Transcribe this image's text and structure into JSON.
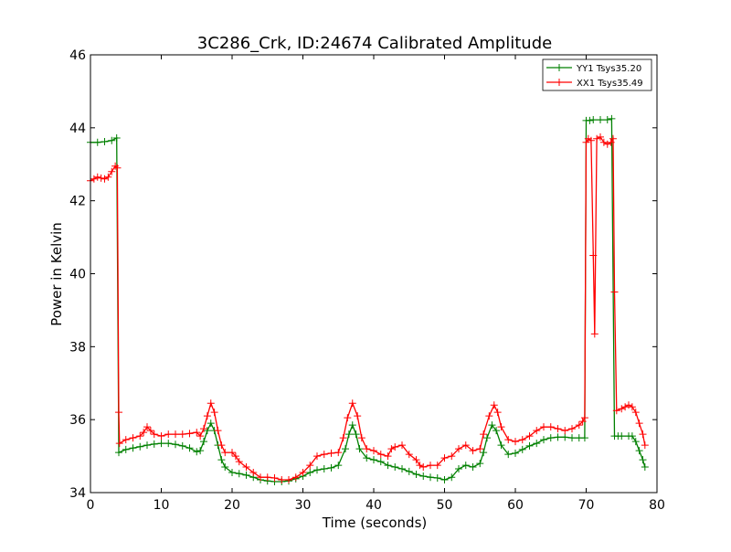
{
  "chart_data": {
    "type": "line",
    "title": "3C286_Crk, ID:24674 Calibrated Amplitude",
    "xlabel": "Time (seconds)",
    "ylabel": "Power in Kelvin",
    "xlim": [
      0,
      80
    ],
    "ylim": [
      34,
      46
    ],
    "xticks": [
      0,
      10,
      20,
      30,
      40,
      50,
      60,
      70,
      80
    ],
    "yticks": [
      34,
      36,
      38,
      40,
      42,
      44,
      46
    ],
    "grid": false,
    "legend_position": "upper-right",
    "marker": "+",
    "series": [
      {
        "name": "YY1 Tsys35.20",
        "color": "#008000",
        "points": [
          [
            0,
            43.6
          ],
          [
            1,
            43.6
          ],
          [
            2,
            43.62
          ],
          [
            3,
            43.65
          ],
          [
            3.7,
            43.72
          ],
          [
            4.0,
            35.1
          ],
          [
            5,
            35.18
          ],
          [
            6,
            35.22
          ],
          [
            7,
            35.26
          ],
          [
            8,
            35.3
          ],
          [
            9,
            35.33
          ],
          [
            10,
            35.35
          ],
          [
            11,
            35.35
          ],
          [
            12,
            35.32
          ],
          [
            13,
            35.28
          ],
          [
            14,
            35.22
          ],
          [
            15,
            35.12
          ],
          [
            15.5,
            35.15
          ],
          [
            16,
            35.4
          ],
          [
            16.5,
            35.7
          ],
          [
            17,
            35.9
          ],
          [
            17.5,
            35.7
          ],
          [
            18,
            35.3
          ],
          [
            18.5,
            34.9
          ],
          [
            19,
            34.7
          ],
          [
            20,
            34.55
          ],
          [
            21,
            34.52
          ],
          [
            22,
            34.48
          ],
          [
            23,
            34.42
          ],
          [
            24,
            34.35
          ],
          [
            25,
            34.32
          ],
          [
            26,
            34.3
          ],
          [
            27,
            34.3
          ],
          [
            28,
            34.32
          ],
          [
            29,
            34.38
          ],
          [
            30,
            34.45
          ],
          [
            31,
            34.55
          ],
          [
            32,
            34.62
          ],
          [
            33,
            34.65
          ],
          [
            34,
            34.68
          ],
          [
            35,
            34.75
          ],
          [
            36,
            35.2
          ],
          [
            36.5,
            35.6
          ],
          [
            37,
            35.85
          ],
          [
            37.5,
            35.6
          ],
          [
            38,
            35.2
          ],
          [
            39,
            34.95
          ],
          [
            40,
            34.9
          ],
          [
            41,
            34.85
          ],
          [
            42,
            34.75
          ],
          [
            43,
            34.7
          ],
          [
            44,
            34.65
          ],
          [
            45,
            34.58
          ],
          [
            46,
            34.5
          ],
          [
            47,
            34.45
          ],
          [
            48,
            34.42
          ],
          [
            49,
            34.4
          ],
          [
            50,
            34.35
          ],
          [
            51,
            34.42
          ],
          [
            52,
            34.65
          ],
          [
            53,
            34.75
          ],
          [
            54,
            34.7
          ],
          [
            55,
            34.8
          ],
          [
            55.5,
            35.1
          ],
          [
            56,
            35.5
          ],
          [
            56.7,
            35.85
          ],
          [
            57.3,
            35.7
          ],
          [
            58,
            35.3
          ],
          [
            59,
            35.05
          ],
          [
            60,
            35.08
          ],
          [
            61,
            35.18
          ],
          [
            62,
            35.28
          ],
          [
            63,
            35.35
          ],
          [
            64,
            35.45
          ],
          [
            65,
            35.5
          ],
          [
            66,
            35.52
          ],
          [
            67,
            35.52
          ],
          [
            68,
            35.5
          ],
          [
            69,
            35.5
          ],
          [
            69.8,
            35.5
          ],
          [
            70.0,
            44.2
          ],
          [
            70.5,
            44.2
          ],
          [
            71,
            44.22
          ],
          [
            72,
            44.22
          ],
          [
            73,
            44.22
          ],
          [
            73.6,
            44.25
          ],
          [
            74.0,
            35.55
          ],
          [
            74.5,
            35.55
          ],
          [
            75,
            35.55
          ],
          [
            76,
            35.55
          ],
          [
            76.5,
            35.55
          ],
          [
            77,
            35.4
          ],
          [
            77.5,
            35.15
          ],
          [
            78,
            34.9
          ],
          [
            78.3,
            34.7
          ]
        ]
      },
      {
        "name": "XX1 Tsys35.49",
        "color": "#ff0000",
        "points": [
          [
            0,
            42.55
          ],
          [
            0.5,
            42.6
          ],
          [
            1,
            42.65
          ],
          [
            1.5,
            42.62
          ],
          [
            2,
            42.6
          ],
          [
            2.5,
            42.65
          ],
          [
            3,
            42.8
          ],
          [
            3.5,
            42.95
          ],
          [
            3.8,
            42.9
          ],
          [
            4.0,
            36.2
          ],
          [
            4.1,
            35.35
          ],
          [
            5,
            35.45
          ],
          [
            6,
            35.5
          ],
          [
            7,
            35.55
          ],
          [
            7.5,
            35.65
          ],
          [
            8,
            35.8
          ],
          [
            8.5,
            35.7
          ],
          [
            9,
            35.6
          ],
          [
            10,
            35.55
          ],
          [
            11,
            35.6
          ],
          [
            12,
            35.6
          ],
          [
            13,
            35.6
          ],
          [
            14,
            35.62
          ],
          [
            15,
            35.65
          ],
          [
            15.5,
            35.55
          ],
          [
            16,
            35.75
          ],
          [
            16.5,
            36.1
          ],
          [
            17,
            36.45
          ],
          [
            17.5,
            36.2
          ],
          [
            18,
            35.7
          ],
          [
            18.5,
            35.3
          ],
          [
            19,
            35.1
          ],
          [
            20,
            35.1
          ],
          [
            20.5,
            35.0
          ],
          [
            21,
            34.85
          ],
          [
            22,
            34.7
          ],
          [
            23,
            34.55
          ],
          [
            24,
            34.42
          ],
          [
            25,
            34.42
          ],
          [
            26,
            34.4
          ],
          [
            27,
            34.35
          ],
          [
            28,
            34.35
          ],
          [
            29,
            34.42
          ],
          [
            30,
            34.55
          ],
          [
            31,
            34.75
          ],
          [
            32,
            35.0
          ],
          [
            33,
            35.05
          ],
          [
            34,
            35.08
          ],
          [
            35,
            35.1
          ],
          [
            35.7,
            35.5
          ],
          [
            36.3,
            36.05
          ],
          [
            37,
            36.45
          ],
          [
            37.7,
            36.1
          ],
          [
            38.3,
            35.5
          ],
          [
            39,
            35.2
          ],
          [
            40,
            35.15
          ],
          [
            41,
            35.05
          ],
          [
            42,
            35.0
          ],
          [
            42.5,
            35.2
          ],
          [
            43,
            35.25
          ],
          [
            44,
            35.3
          ],
          [
            45,
            35.05
          ],
          [
            46,
            34.9
          ],
          [
            46.5,
            34.75
          ],
          [
            47,
            34.7
          ],
          [
            48,
            34.75
          ],
          [
            49,
            34.75
          ],
          [
            50,
            34.95
          ],
          [
            51,
            35.0
          ],
          [
            52,
            35.2
          ],
          [
            53,
            35.3
          ],
          [
            54,
            35.15
          ],
          [
            55,
            35.2
          ],
          [
            55.5,
            35.6
          ],
          [
            56.3,
            36.1
          ],
          [
            57,
            36.4
          ],
          [
            57.5,
            36.2
          ],
          [
            58,
            35.8
          ],
          [
            59,
            35.45
          ],
          [
            60,
            35.4
          ],
          [
            61,
            35.45
          ],
          [
            62,
            35.55
          ],
          [
            63,
            35.7
          ],
          [
            64,
            35.8
          ],
          [
            65,
            35.8
          ],
          [
            66,
            35.75
          ],
          [
            67,
            35.7
          ],
          [
            68,
            35.75
          ],
          [
            69,
            35.85
          ],
          [
            69.5,
            35.95
          ],
          [
            69.8,
            36.05
          ],
          [
            70.0,
            43.6
          ],
          [
            70.3,
            43.7
          ],
          [
            70.7,
            43.65
          ],
          [
            71.0,
            40.5
          ],
          [
            71.2,
            38.35
          ],
          [
            71.5,
            43.7
          ],
          [
            72,
            43.75
          ],
          [
            72.5,
            43.6
          ],
          [
            73,
            43.55
          ],
          [
            73.5,
            43.6
          ],
          [
            73.8,
            43.7
          ],
          [
            74.0,
            39.5
          ],
          [
            74.3,
            36.25
          ],
          [
            75,
            36.3
          ],
          [
            75.5,
            36.35
          ],
          [
            76,
            36.4
          ],
          [
            76.5,
            36.35
          ],
          [
            77,
            36.2
          ],
          [
            77.5,
            35.9
          ],
          [
            78,
            35.6
          ],
          [
            78.3,
            35.3
          ]
        ]
      }
    ]
  }
}
